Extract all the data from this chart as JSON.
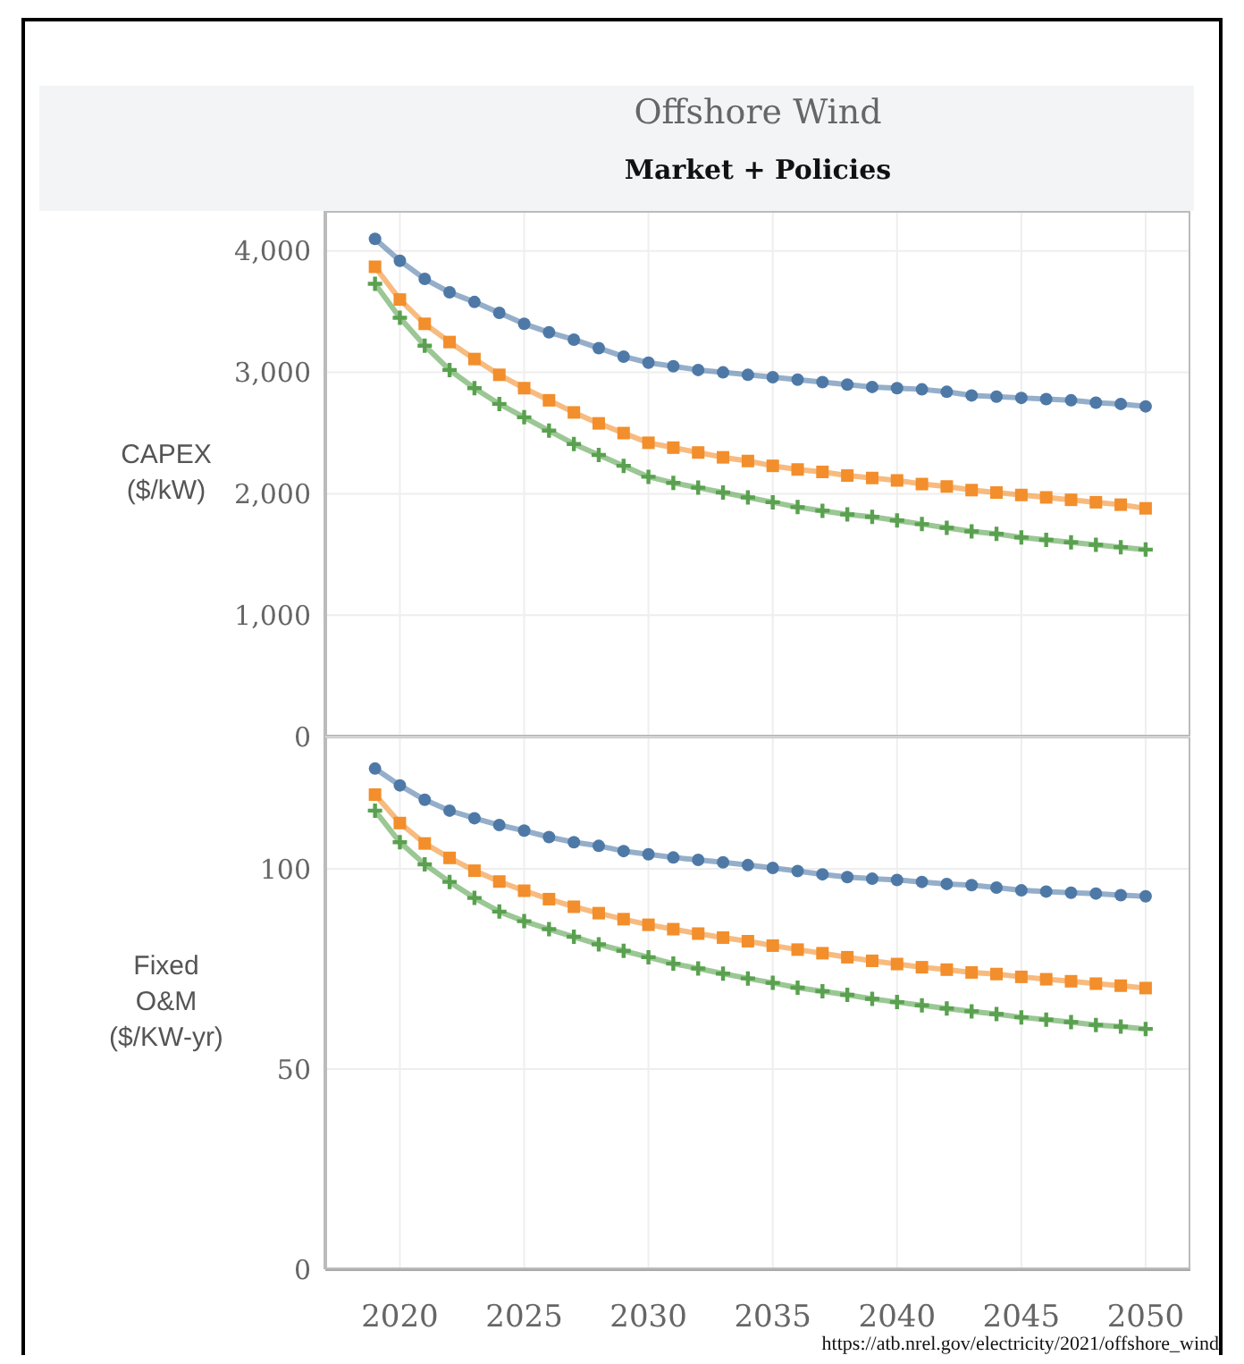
{
  "chart_data": [
    {
      "type": "line",
      "title": "Offshore Wind",
      "subtitle": "Market + Policies",
      "ylabel": "CAPEX\n($/kW)",
      "x": [
        2019,
        2020,
        2021,
        2022,
        2023,
        2024,
        2025,
        2026,
        2027,
        2028,
        2029,
        2030,
        2031,
        2032,
        2033,
        2034,
        2035,
        2036,
        2037,
        2038,
        2039,
        2040,
        2041,
        2042,
        2043,
        2044,
        2045,
        2046,
        2047,
        2048,
        2049,
        2050
      ],
      "xlim": [
        2017,
        2051.8
      ],
      "xticks": [
        2020,
        2025,
        2030,
        2035,
        2040,
        2045,
        2050
      ],
      "ylim": [
        0,
        4330
      ],
      "yticks": [
        0,
        {
          "value": 1000,
          "label": "1,000"
        },
        {
          "value": 2000,
          "label": "2,000"
        },
        {
          "value": 3000,
          "label": "3,000"
        },
        {
          "value": 4000,
          "label": "4,000"
        }
      ],
      "grid": true,
      "tick_labels": "y",
      "series": [
        {
          "color": "#4e79a7",
          "marker": "circle",
          "values": [
            4100,
            3920,
            3770,
            3660,
            3580,
            3490,
            3400,
            3330,
            3270,
            3200,
            3130,
            3080,
            3050,
            3020,
            3000,
            2980,
            2960,
            2940,
            2920,
            2900,
            2880,
            2870,
            2860,
            2840,
            2810,
            2800,
            2790,
            2780,
            2770,
            2750,
            2740,
            2720
          ]
        },
        {
          "color": "#f28e2b",
          "marker": "square",
          "values": [
            3870,
            3600,
            3400,
            3250,
            3110,
            2980,
            2870,
            2770,
            2670,
            2580,
            2500,
            2420,
            2380,
            2340,
            2300,
            2270,
            2230,
            2200,
            2180,
            2150,
            2130,
            2110,
            2080,
            2060,
            2030,
            2010,
            1990,
            1970,
            1950,
            1930,
            1910,
            1880
          ]
        },
        {
          "color": "#59a14f",
          "marker": "cross",
          "values": [
            3730,
            3450,
            3220,
            3020,
            2870,
            2740,
            2630,
            2520,
            2410,
            2320,
            2230,
            2140,
            2090,
            2050,
            2010,
            1970,
            1930,
            1890,
            1860,
            1830,
            1810,
            1780,
            1750,
            1720,
            1690,
            1670,
            1640,
            1620,
            1600,
            1580,
            1560,
            1540
          ]
        }
      ]
    },
    {
      "type": "line",
      "ylabel": "Fixed\nO&M\n($/KW-yr)",
      "annotations": [
        "https://atb.nrel.gov/electricity/2021/offshore_wind"
      ],
      "x": [
        2019,
        2020,
        2021,
        2022,
        2023,
        2024,
        2025,
        2026,
        2027,
        2028,
        2029,
        2030,
        2031,
        2032,
        2033,
        2034,
        2035,
        2036,
        2037,
        2038,
        2039,
        2040,
        2041,
        2042,
        2043,
        2044,
        2045,
        2046,
        2047,
        2048,
        2049,
        2050
      ],
      "xlim": [
        2017,
        2051.8
      ],
      "xticks": [
        2020,
        2025,
        2030,
        2035,
        2040,
        2045,
        2050
      ],
      "ylim": [
        0,
        133
      ],
      "yticks": [
        0,
        50,
        100
      ],
      "grid": true,
      "series": [
        {
          "color": "#4e79a7",
          "marker": "circle",
          "values": [
            125,
            120.8,
            117.2,
            114.5,
            112.6,
            110.9,
            109.5,
            107.9,
            106.6,
            105.7,
            104.4,
            103.6,
            102.8,
            102.2,
            101.6,
            100.9,
            100.2,
            99.4,
            98.6,
            97.9,
            97.5,
            97.2,
            96.7,
            96.2,
            95.9,
            95.3,
            94.6,
            94.3,
            94.0,
            93.8,
            93.4,
            93.1
          ]
        },
        {
          "color": "#f28e2b",
          "marker": "square",
          "values": [
            118.5,
            111.4,
            106.3,
            102.7,
            99.5,
            96.8,
            94.5,
            92.4,
            90.5,
            88.9,
            87.4,
            86.0,
            84.9,
            83.8,
            82.8,
            81.9,
            80.8,
            79.8,
            78.9,
            77.9,
            77.0,
            76.2,
            75.4,
            74.8,
            74.1,
            73.7,
            73.0,
            72.4,
            71.9,
            71.3,
            70.8,
            70.2
          ]
        },
        {
          "color": "#59a14f",
          "marker": "cross",
          "values": [
            114.5,
            106.6,
            101.1,
            96.7,
            92.7,
            89.3,
            86.9,
            84.9,
            83.0,
            81.1,
            79.5,
            77.9,
            76.3,
            75.1,
            73.8,
            72.6,
            71.5,
            70.3,
            69.4,
            68.5,
            67.5,
            66.7,
            65.9,
            65.1,
            64.4,
            63.7,
            62.9,
            62.3,
            61.7,
            61.0,
            60.6,
            60.0
          ]
        }
      ]
    }
  ]
}
